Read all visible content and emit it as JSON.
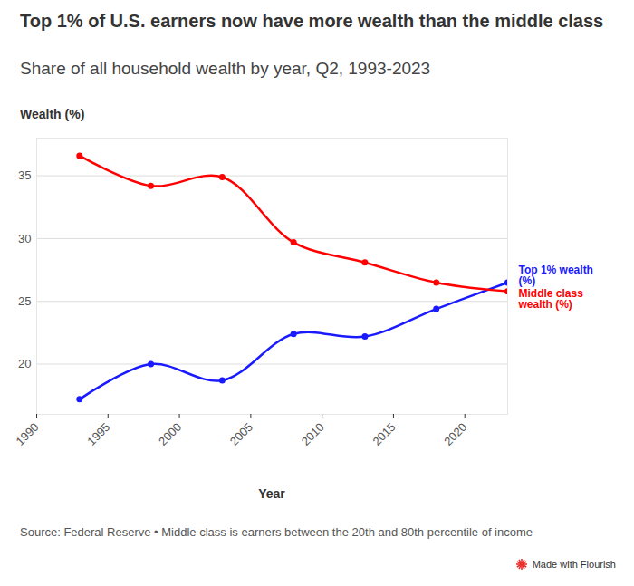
{
  "chart_data": {
    "type": "line",
    "title": "Top 1% of U.S. earners now have more wealth than the middle class",
    "subtitle": "Share of all household wealth by year, Q2, 1993-2023",
    "y_label": "Wealth (%)",
    "x_label": "Year",
    "source": "Source: Federal Reserve • Middle class is earners between the 20th and 80th percentile of income",
    "credit": "Made with Flourish",
    "x": [
      1993,
      1998,
      2003,
      2008,
      2013,
      2018,
      2023
    ],
    "series": [
      {
        "name": "Top 1% wealth (%)",
        "color": "#1a1aff",
        "marker": "circle",
        "values": [
          17.2,
          20.0,
          18.7,
          22.4,
          22.2,
          24.4,
          26.5
        ]
      },
      {
        "name": "Middle class wealth (%)",
        "color": "#ff0000",
        "marker": "circle",
        "values": [
          36.6,
          34.2,
          34.9,
          29.7,
          28.1,
          26.5,
          25.8
        ]
      }
    ],
    "xlim": [
      1990,
      2023
    ],
    "xticks": [
      1990,
      1995,
      2000,
      2005,
      2010,
      2015,
      2020
    ],
    "ylim": [
      16,
      38
    ],
    "yticks": [
      20,
      25,
      30,
      35
    ],
    "grid": true
  }
}
